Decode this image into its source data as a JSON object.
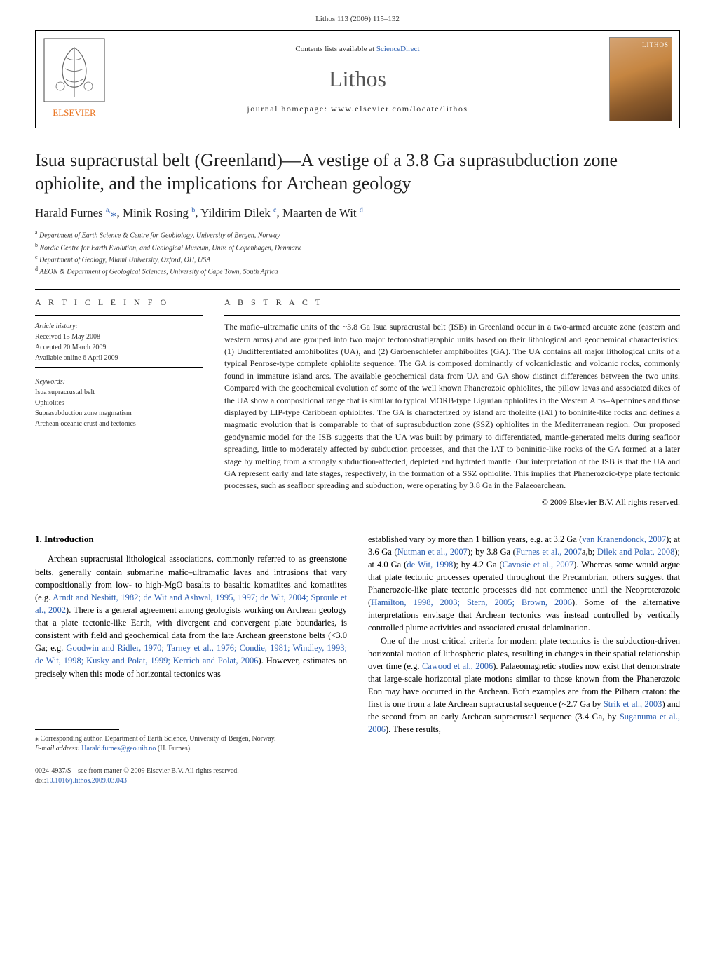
{
  "header": {
    "citation": "Lithos 113 (2009) 115–132",
    "contents_prefix": "Contents lists available at ",
    "contents_link": "ScienceDirect",
    "journal_name": "Lithos",
    "homepage": "journal homepage: www.elsevier.com/locate/lithos",
    "cover_label": "LITHOS",
    "publisher": "ELSEVIER"
  },
  "title": "Isua supracrustal belt (Greenland)—A vestige of a 3.8 Ga suprasubduction zone ophiolite, and the implications for Archean geology",
  "authors_html": "Harald Furnes <sup>a,</sup><span class='star'>⁎</span>, Minik Rosing <sup>b</sup>, Yildirim Dilek <sup>c</sup>, Maarten de Wit <sup>d</sup>",
  "affiliations": [
    {
      "sup": "a",
      "text": "Department of Earth Science & Centre for Geobiology, University of Bergen, Norway"
    },
    {
      "sup": "b",
      "text": "Nordic Centre for Earth Evolution, and Geological Museum, Univ. of Copenhagen, Denmark"
    },
    {
      "sup": "c",
      "text": "Department of Geology, Miami University, Oxford, OH, USA"
    },
    {
      "sup": "d",
      "text": "AEON & Department of Geological Sciences, University of Cape Town, South Africa"
    }
  ],
  "article_info": {
    "head": "A R T I C L E   I N F O",
    "history_label": "Article history:",
    "history": [
      "Received 15 May 2008",
      "Accepted 20 March 2009",
      "Available online 6 April 2009"
    ],
    "keywords_label": "Keywords:",
    "keywords": [
      "Isua supracrustal belt",
      "Ophiolites",
      "Suprasubduction zone magmatism",
      "Archean oceanic crust and tectonics"
    ]
  },
  "abstract": {
    "head": "A B S T R A C T",
    "text": "The mafic–ultramafic units of the ~3.8 Ga Isua supracrustal belt (ISB) in Greenland occur in a two-armed arcuate zone (eastern and western arms) and are grouped into two major tectonostratigraphic units based on their lithological and geochemical characteristics: (1) Undifferentiated amphibolites (UA), and (2) Garbenschiefer amphibolites (GA). The UA contains all major lithological units of a typical Penrose-type complete ophiolite sequence. The GA is composed dominantly of volcaniclastic and volcanic rocks, commonly found in immature island arcs. The available geochemical data from UA and GA show distinct differences between the two units. Compared with the geochemical evolution of some of the well known Phanerozoic ophiolites, the pillow lavas and associated dikes of the UA show a compositional range that is similar to typical MORB-type Ligurian ophiolites in the Western Alps–Apennines and those displayed by LIP-type Caribbean ophiolites. The GA is characterized by island arc tholeiite (IAT) to boninite-like rocks and defines a magmatic evolution that is comparable to that of suprasubduction zone (SSZ) ophiolites in the Mediterranean region. Our proposed geodynamic model for the ISB suggests that the UA was built by primary to differentiated, mantle-generated melts during seafloor spreading, little to moderately affected by subduction processes, and that the IAT to boninitic-like rocks of the GA formed at a later stage by melting from a strongly subduction-affected, depleted and hydrated mantle. Our interpretation of the ISB is that the UA and GA represent early and late stages, respectively, in the formation of a SSZ ophiolite. This implies that Phanerozoic-type plate tectonic processes, such as seafloor spreading and subduction, were operating by 3.8 Ga in the Palaeoarchean.",
    "copyright": "© 2009 Elsevier B.V. All rights reserved."
  },
  "body": {
    "intro_head": "1. Introduction",
    "col1_p1_a": "Archean supracrustal lithological associations, commonly referred to as greenstone belts, generally contain submarine mafic–ultramafic lavas and intrusions that vary compositionally from low- to high-MgO basalts to basaltic komatiites and komatiites (e.g. ",
    "col1_p1_link1": "Arndt and Nesbitt, 1982; de Wit and Ashwal, 1995, 1997; de Wit, 2004; Sproule et al., 2002",
    "col1_p1_b": "). There is a general agreement among geologists working on Archean geology that a plate tectonic-like Earth, with divergent and convergent plate boundaries, is consistent with field and geochemical data from the late Archean greenstone belts (<3.0 Ga; e.g. ",
    "col1_p1_link2": "Goodwin and Ridler, 1970; Tarney et al., 1976; Condie, 1981; Windley, 1993; de Wit, 1998; Kusky and Polat, 1999; Kerrich and Polat, 2006",
    "col1_p1_c": "). However, estimates on precisely when this mode of horizontal tectonics was",
    "col2_p1_a": "established vary by more than 1 billion years, e.g. at 3.2 Ga (",
    "col2_p1_link1": "van Kranendonck, 2007",
    "col2_p1_b": "); at 3.6 Ga (",
    "col2_p1_link2": "Nutman et al., 2007",
    "col2_p1_c": "); by 3.8 Ga (",
    "col2_p1_link3": "Furnes et al., 2007",
    "col2_p1_d": "a,b; ",
    "col2_p1_link4": "Dilek and Polat, 2008",
    "col2_p1_e": "); at 4.0 Ga (",
    "col2_p1_link5": "de Wit, 1998",
    "col2_p1_f": "); by 4.2 Ga (",
    "col2_p1_link6": "Cavosie et al., 2007",
    "col2_p1_g": "). Whereas some would argue that plate tectonic processes operated throughout the Precambrian, others suggest that Phanerozoic-like plate tectonic processes did not commence until the Neoproterozoic (",
    "col2_p1_link7": "Hamilton, 1998, 2003; Stern, 2005; Brown, 2006",
    "col2_p1_h": "). Some of the alternative interpretations envisage that Archean tectonics was instead controlled by vertically controlled plume activities and associated crustal delamination.",
    "col2_p2_a": "One of the most critical criteria for modern plate tectonics is the subduction-driven horizontal motion of lithospheric plates, resulting in changes in their spatial relationship over time (e.g. ",
    "col2_p2_link1": "Cawood et al., 2006",
    "col2_p2_b": "). Palaeomagnetic studies now exist that demonstrate that large-scale horizontal plate motions similar to those known from the Phanerozoic Eon may have occurred in the Archean. Both examples are from the Pilbara craton: the first is one from a late Archean supracrustal sequence (~2.7 Ga by ",
    "col2_p2_link2": "Strik et al., 2003",
    "col2_p2_c": ") and the second from an early Archean supracrustal sequence (3.4 Ga, by ",
    "col2_p2_link3": "Suganuma et al., 2006",
    "col2_p2_d": "). These results,"
  },
  "footnote": {
    "star": "⁎",
    "text": " Corresponding author. Department of Earth Science, University of Bergen, Norway.",
    "email_label": "E-mail address: ",
    "email": "Harald.furnes@geo.uib.no",
    "email_suffix": " (H. Furnes)."
  },
  "footer": {
    "issn": "0024-4937/$ – see front matter © 2009 Elsevier B.V. All rights reserved.",
    "doi_label": "doi:",
    "doi": "10.1016/j.lithos.2009.03.043"
  },
  "colors": {
    "link": "#2a5db0",
    "text": "#222222",
    "muted": "#333333",
    "elsevier_orange": "#e9711c"
  }
}
